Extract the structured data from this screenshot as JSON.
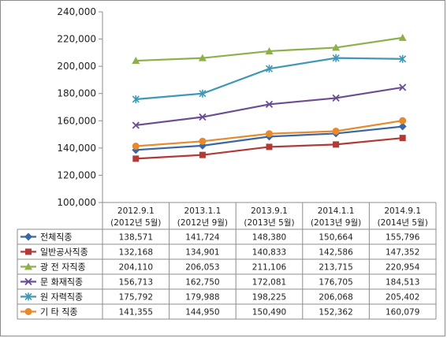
{
  "chart_data": {
    "type": "line",
    "categories": [
      [
        "2012.9.1",
        "(2012년 5월)"
      ],
      [
        "2013.1.1",
        "(2012년 9월)"
      ],
      [
        "2013.9.1",
        "(2013년 5월)"
      ],
      [
        "2014.1.1",
        "(2013년 9월)"
      ],
      [
        "2014.9.1",
        "(2014년 5월)"
      ]
    ],
    "ylim": [
      100000,
      240000
    ],
    "yticks": [
      "100,000",
      "120,000",
      "140,000",
      "160,000",
      "180,000",
      "200,000",
      "220,000",
      "240,000"
    ],
    "ytick_values": [
      100000,
      120000,
      140000,
      160000,
      180000,
      200000,
      220000,
      240000
    ],
    "grid": false,
    "legend": "data-table",
    "series": [
      {
        "name": "전체직종",
        "color": "#3a66a8",
        "marker": "diamond",
        "values": [
          138571,
          141724,
          148380,
          150664,
          155796
        ],
        "labels": [
          "138,571",
          "141,724",
          "148,380",
          "150,664",
          "155,796"
        ]
      },
      {
        "name": "일반공사직종",
        "color": "#b13a37",
        "marker": "square",
        "values": [
          132168,
          134901,
          140833,
          142586,
          147352
        ],
        "labels": [
          "132,168",
          "134,901",
          "140,833",
          "142,586",
          "147,352"
        ]
      },
      {
        "name": "광 전 자직종",
        "color": "#8cb04a",
        "marker": "triangle",
        "values": [
          204110,
          206053,
          211106,
          213715,
          220954
        ],
        "labels": [
          "204,110",
          "206,053",
          "211,106",
          "213,715",
          "220,954"
        ]
      },
      {
        "name": "문 화재직종",
        "color": "#6a4d93",
        "marker": "x",
        "values": [
          156713,
          162750,
          172081,
          176705,
          184513
        ],
        "labels": [
          "156,713",
          "162,750",
          "172,081",
          "176,705",
          "184,513"
        ]
      },
      {
        "name": "원 자력직종",
        "color": "#3f98b5",
        "marker": "star",
        "values": [
          175792,
          179988,
          198225,
          206068,
          205402
        ],
        "labels": [
          "175,792",
          "179,988",
          "198,225",
          "206,068",
          "205,402"
        ]
      },
      {
        "name": "기 타 직종",
        "color": "#e68a2e",
        "marker": "circle",
        "values": [
          141355,
          144950,
          150490,
          152362,
          160079
        ],
        "labels": [
          "141,355",
          "144,950",
          "150,490",
          "152,362",
          "160,079"
        ]
      }
    ]
  }
}
